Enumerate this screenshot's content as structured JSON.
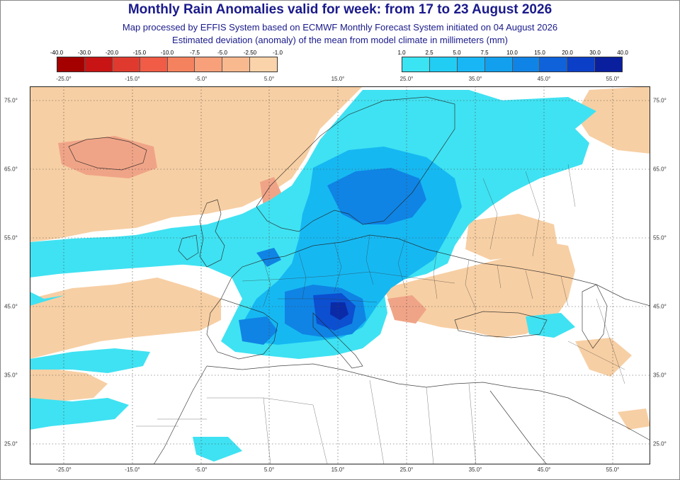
{
  "header": {
    "title": "Monthly Rain Anomalies valid for week: from 17 to 23 August 2026",
    "subtitle": "Map processed by EFFIS System based on ECMWF Monthly Forecast System initiated on 04 August 2026",
    "description": "Estimated deviation (anomaly) of the mean from model climate in millimeters (mm)"
  },
  "legend_negative": {
    "labels": [
      "-40.0",
      "-30.0",
      "-20.0",
      "-15.0",
      "-10.0",
      "-7.5",
      "-5.0",
      "-2.50",
      "-1.0"
    ],
    "colors": [
      "#a50000",
      "#c81414",
      "#e03a2e",
      "#f05c46",
      "#f5825e",
      "#f8a07a",
      "#f9b98f",
      "#fbd3aa"
    ]
  },
  "legend_positive": {
    "labels": [
      "1.0",
      "2.5",
      "5.0",
      "7.5",
      "10.0",
      "15.0",
      "20.0",
      "30.0",
      "40.0"
    ],
    "colors": [
      "#3ae4f2",
      "#22cdf4",
      "#18b6f4",
      "#12a0ee",
      "#1084e6",
      "#0f62da",
      "#0c3fc7",
      "#0a1f9e"
    ]
  },
  "map": {
    "lon_ticks": [
      "-25.0°",
      "-15.0°",
      "-5.0°",
      "5.0°",
      "15.0°",
      "25.0°",
      "35.0°",
      "45.0°",
      "55.0°"
    ],
    "lat_ticks": [
      "75.0°",
      "65.0°",
      "55.0°",
      "45.0°",
      "35.0°",
      "25.0°"
    ],
    "colors": {
      "dry": "#f7cfa4",
      "dry_strong": "#f0a487",
      "dry_max": "#e8756a",
      "wet_light": "#3fe2f2",
      "wet_mid": "#16b8f2",
      "wet_strong": "#0f84e4",
      "wet_max": "#0c4fd0",
      "wet_peak": "#0a2aa8"
    }
  }
}
